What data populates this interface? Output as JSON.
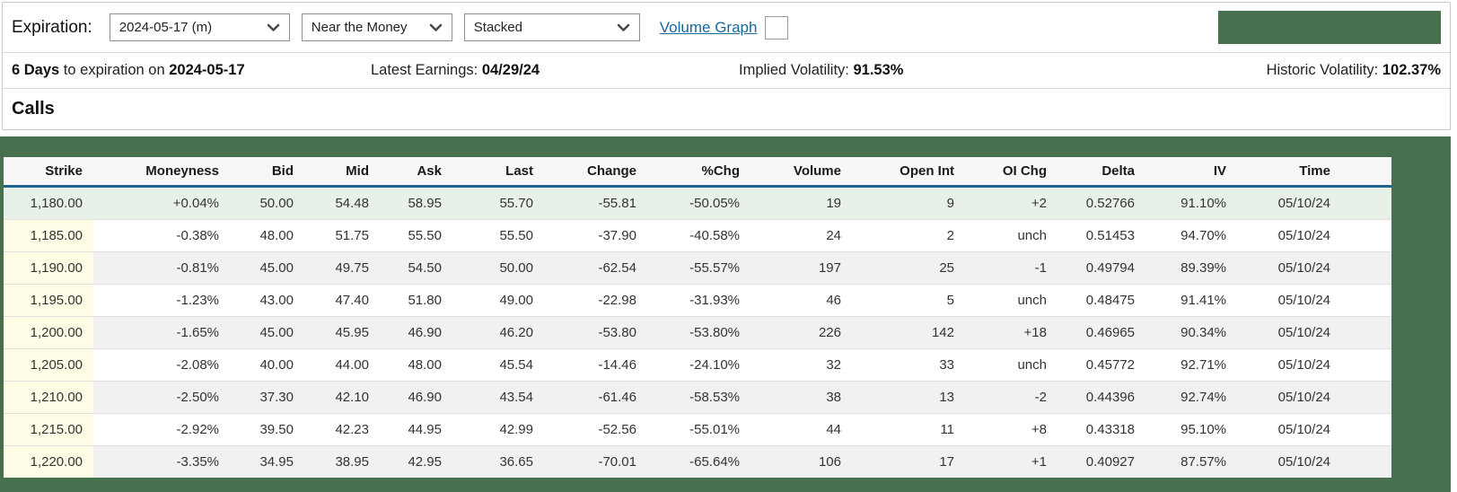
{
  "toolbar": {
    "expiration_label": "Expiration:",
    "expiration_value": "2024-05-17 (m)",
    "range_value": "Near the Money",
    "view_value": "Stacked",
    "volume_graph_label": "Volume Graph",
    "volume_graph_checked": false
  },
  "info_bar": {
    "days_bold": "6 Days",
    "days_rest": " to expiration on ",
    "days_date": "2024-05-17",
    "earnings_label": "Latest Earnings: ",
    "earnings_value": "04/29/24",
    "iv_label": "Implied Volatility: ",
    "iv_value": "91.53%",
    "hv_label": "Historic Volatility: ",
    "hv_value": "102.37%"
  },
  "section_title": "Calls",
  "table": {
    "columns": [
      "Strike",
      "Moneyness",
      "Bid",
      "Mid",
      "Ask",
      "Last",
      "Change",
      "%Chg",
      "Volume",
      "Open Int",
      "OI Chg",
      "Delta",
      "IV",
      "Time"
    ],
    "rows": [
      {
        "highlight": true,
        "cells": [
          "1,180.00",
          "+0.04%",
          "50.00",
          "54.48",
          "58.95",
          "55.70",
          "-55.81",
          "-50.05%",
          "19",
          "9",
          "+2",
          "0.52766",
          "91.10%",
          "05/10/24"
        ]
      },
      {
        "highlight": false,
        "cells": [
          "1,185.00",
          "-0.38%",
          "48.00",
          "51.75",
          "55.50",
          "55.50",
          "-37.90",
          "-40.58%",
          "24",
          "2",
          "unch",
          "0.51453",
          "94.70%",
          "05/10/24"
        ]
      },
      {
        "highlight": false,
        "cells": [
          "1,190.00",
          "-0.81%",
          "45.00",
          "49.75",
          "54.50",
          "50.00",
          "-62.54",
          "-55.57%",
          "197",
          "25",
          "-1",
          "0.49794",
          "89.39%",
          "05/10/24"
        ]
      },
      {
        "highlight": false,
        "cells": [
          "1,195.00",
          "-1.23%",
          "43.00",
          "47.40",
          "51.80",
          "49.00",
          "-22.98",
          "-31.93%",
          "46",
          "5",
          "unch",
          "0.48475",
          "91.41%",
          "05/10/24"
        ]
      },
      {
        "highlight": false,
        "cells": [
          "1,200.00",
          "-1.65%",
          "45.00",
          "45.95",
          "46.90",
          "46.20",
          "-53.80",
          "-53.80%",
          "226",
          "142",
          "+18",
          "0.46965",
          "90.34%",
          "05/10/24"
        ]
      },
      {
        "highlight": false,
        "cells": [
          "1,205.00",
          "-2.08%",
          "40.00",
          "44.00",
          "48.00",
          "45.54",
          "-14.46",
          "-24.10%",
          "32",
          "33",
          "unch",
          "0.45772",
          "92.71%",
          "05/10/24"
        ]
      },
      {
        "highlight": false,
        "cells": [
          "1,210.00",
          "-2.50%",
          "37.30",
          "42.10",
          "46.90",
          "43.54",
          "-61.46",
          "-58.53%",
          "38",
          "13",
          "-2",
          "0.44396",
          "92.74%",
          "05/10/24"
        ]
      },
      {
        "highlight": false,
        "cells": [
          "1,215.00",
          "-2.92%",
          "39.50",
          "42.23",
          "44.95",
          "42.99",
          "-52.56",
          "-55.01%",
          "44",
          "11",
          "+8",
          "0.43318",
          "95.10%",
          "05/10/24"
        ]
      },
      {
        "highlight": false,
        "cells": [
          "1,220.00",
          "-3.35%",
          "34.95",
          "38.95",
          "42.95",
          "36.65",
          "-70.01",
          "-65.64%",
          "106",
          "17",
          "+1",
          "0.40927",
          "87.57%",
          "05/10/24"
        ]
      }
    ]
  },
  "colors": {
    "accent_green": "#47714e",
    "link_blue": "#17699c",
    "negative_red": "#cc1d1d",
    "positive_green": "#1e7a3e",
    "unchanged_purple": "#7d3bd1",
    "atm_row_bg": "#e8f1e8",
    "strike_column_bg": "#fffde5",
    "header_divider_blue": "#20628f"
  }
}
